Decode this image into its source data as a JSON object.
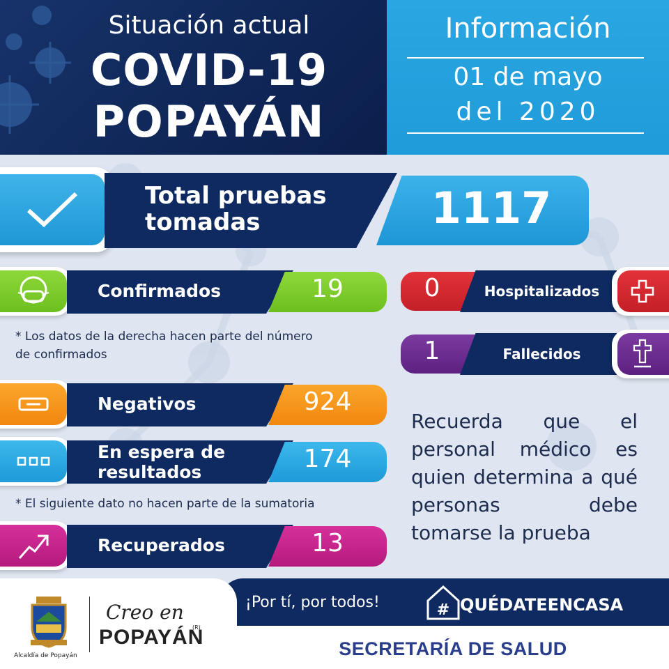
{
  "header": {
    "subtitle": "Situación actual",
    "title": "COVID-19",
    "city": "POPAYÁN",
    "info_title": "Información",
    "date_line1": "01 de mayo",
    "date_line2": "del 2020"
  },
  "total": {
    "label_line1": "Total pruebas",
    "label_line2": "tomadas",
    "value": "1117",
    "icon": "checkmark-icon"
  },
  "stats_left": [
    {
      "label": "Confirmados",
      "value": "19",
      "icon": "face-mask-icon",
      "color": "#7fce2b"
    },
    {
      "label": "Negativos",
      "value": "924",
      "icon": "minus-icon",
      "color": "#f7941d"
    },
    {
      "label_line1": "En espera de",
      "label_line2": "resultados",
      "value": "174",
      "icon": "ellipsis-icon",
      "color": "#27aae1"
    },
    {
      "label": "Recuperados",
      "value": "13",
      "icon": "trend-up-icon",
      "color": "#c7208c"
    }
  ],
  "stats_right": [
    {
      "label": "Hospitalizados",
      "value": "0",
      "icon": "medical-cross-icon",
      "color": "#d7282f"
    },
    {
      "label": "Fallecidos",
      "value": "1",
      "icon": "grave-cross-icon",
      "color": "#6d2c91"
    }
  ],
  "notes": {
    "confirmed_line1": "* Los datos de la derecha hacen parte del número",
    "confirmed_line2": "de confirmados",
    "recovered": "* El siguiente dato no hacen parte de la sumatoria"
  },
  "reminder": "Recuerda que el personal médico es quien determina a qué personas debe tomarse la prueba",
  "footer": {
    "slogan": "¡Por tí, por todos!",
    "hashtag": "QUÉDATEENCASA",
    "secretaria": "SECRETARÍA DE SALUD",
    "alcaldia": "Alcaldía de Popayán",
    "creo_line1": "Creo en",
    "creo_line2": "POPAYÁN",
    "creo_mark": "(R)"
  },
  "colors": {
    "navy": "#0f2a60",
    "blue": "#27aae1",
    "green": "#7fce2b",
    "orange": "#f7941d",
    "red": "#d7282f",
    "purple": "#6d2c91",
    "magenta": "#c7208c"
  }
}
